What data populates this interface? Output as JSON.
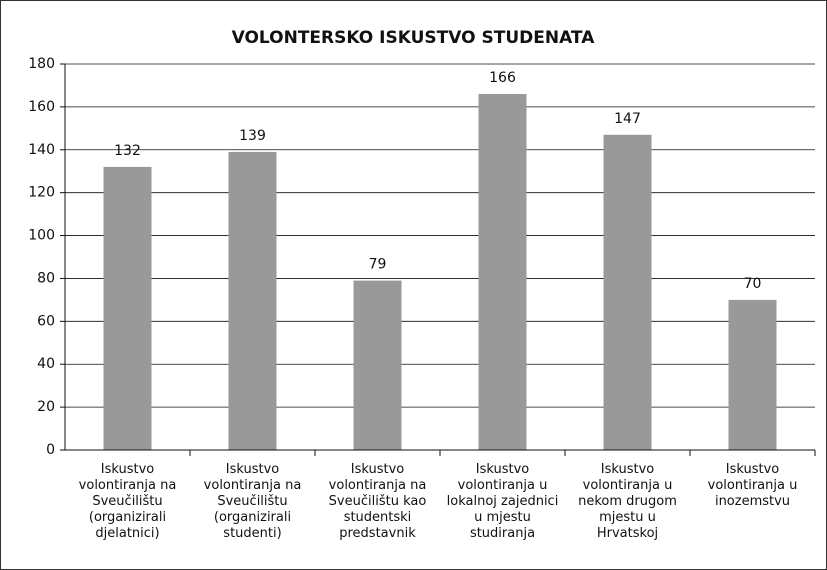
{
  "chart_data": {
    "type": "bar",
    "title": "VOLONTERSKO ISKUSTVO STUDENATA",
    "categories": [
      "Iskustvo volontiranja na Sveučilištu (organizirali djelatnici)",
      "Iskustvo volontiranja na Sveučilištu (organizirali studenti)",
      "Iskustvo volontiranja na Sveučilištu kao studentski predstavnik",
      "Iskustvo volontiranja u lokalnoj zajednici u mjestu studiranja",
      "Iskustvo volontiranja u nekom drugom mjestu u Hrvatskoj",
      "Iskustvo volontiranja u inozemstvu"
    ],
    "values": [
      132,
      139,
      79,
      166,
      147,
      70
    ],
    "color": "#999999",
    "ylim": [
      0,
      180
    ],
    "yticks": [
      0,
      20,
      40,
      60,
      80,
      100,
      120,
      140,
      160,
      180
    ],
    "grid": true
  }
}
